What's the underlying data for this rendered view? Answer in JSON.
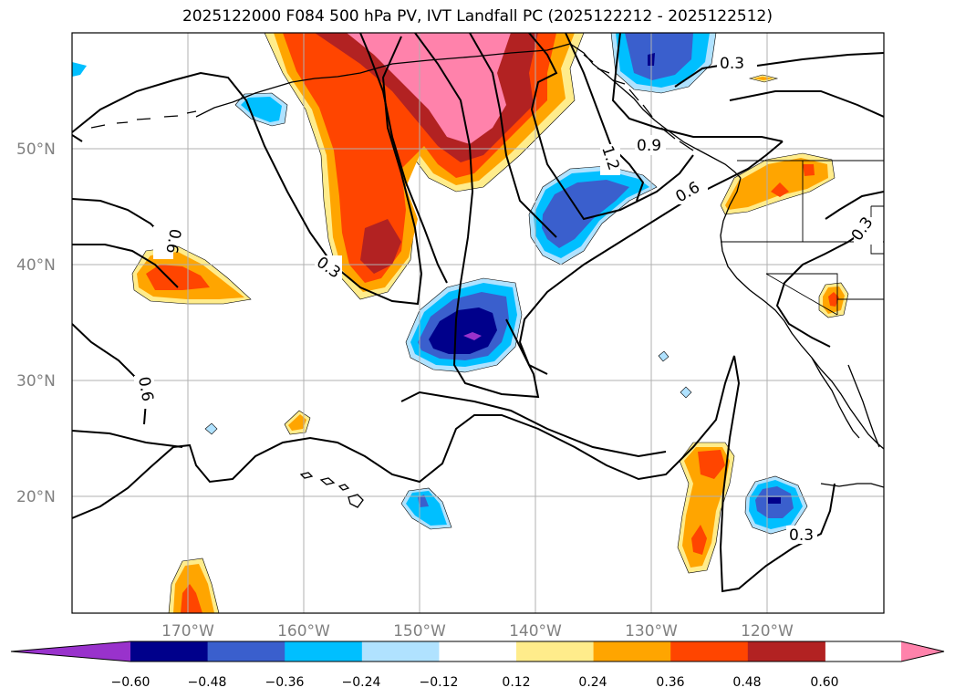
{
  "title": "2025122000 F084 500 hPa PV, IVT Landfall PC (2025122212 - 2025122512)",
  "latitude_labels": [
    "50°N",
    "40°N",
    "30°N",
    "20°N"
  ],
  "longitude_labels": [
    "170°W",
    "160°W",
    "150°W",
    "140°W",
    "130°W",
    "120°W"
  ],
  "contour_labels": [
    "0.3",
    "0.9",
    "1.2",
    "0.6",
    "0.3",
    "0.6",
    "0.3",
    "0.6",
    "0.3"
  ],
  "colorbar": {
    "ticks": [
      "−0.60",
      "−0.48",
      "−0.36",
      "−0.24",
      "−0.12",
      "0.12",
      "0.24",
      "0.36",
      "0.48",
      "0.60"
    ],
    "colors": [
      "#9932cc",
      "#00008b",
      "#3a5fcd",
      "#00bfff",
      "#b0e2ff",
      "#ffffff",
      "#ffec8b",
      "#ffa500",
      "#ff4500",
      "#b22222",
      "#ff82ab"
    ]
  },
  "fill_colors": {
    "purple": "#9932cc",
    "navy": "#00008b",
    "blue": "#3a5fcd",
    "cyan": "#00bfff",
    "lightblue": "#b0e2ff",
    "lightyellow": "#ffec8b",
    "orange": "#ffa500",
    "orangered": "#ff4500",
    "firebrick": "#b22222",
    "pink": "#ff82ab"
  }
}
